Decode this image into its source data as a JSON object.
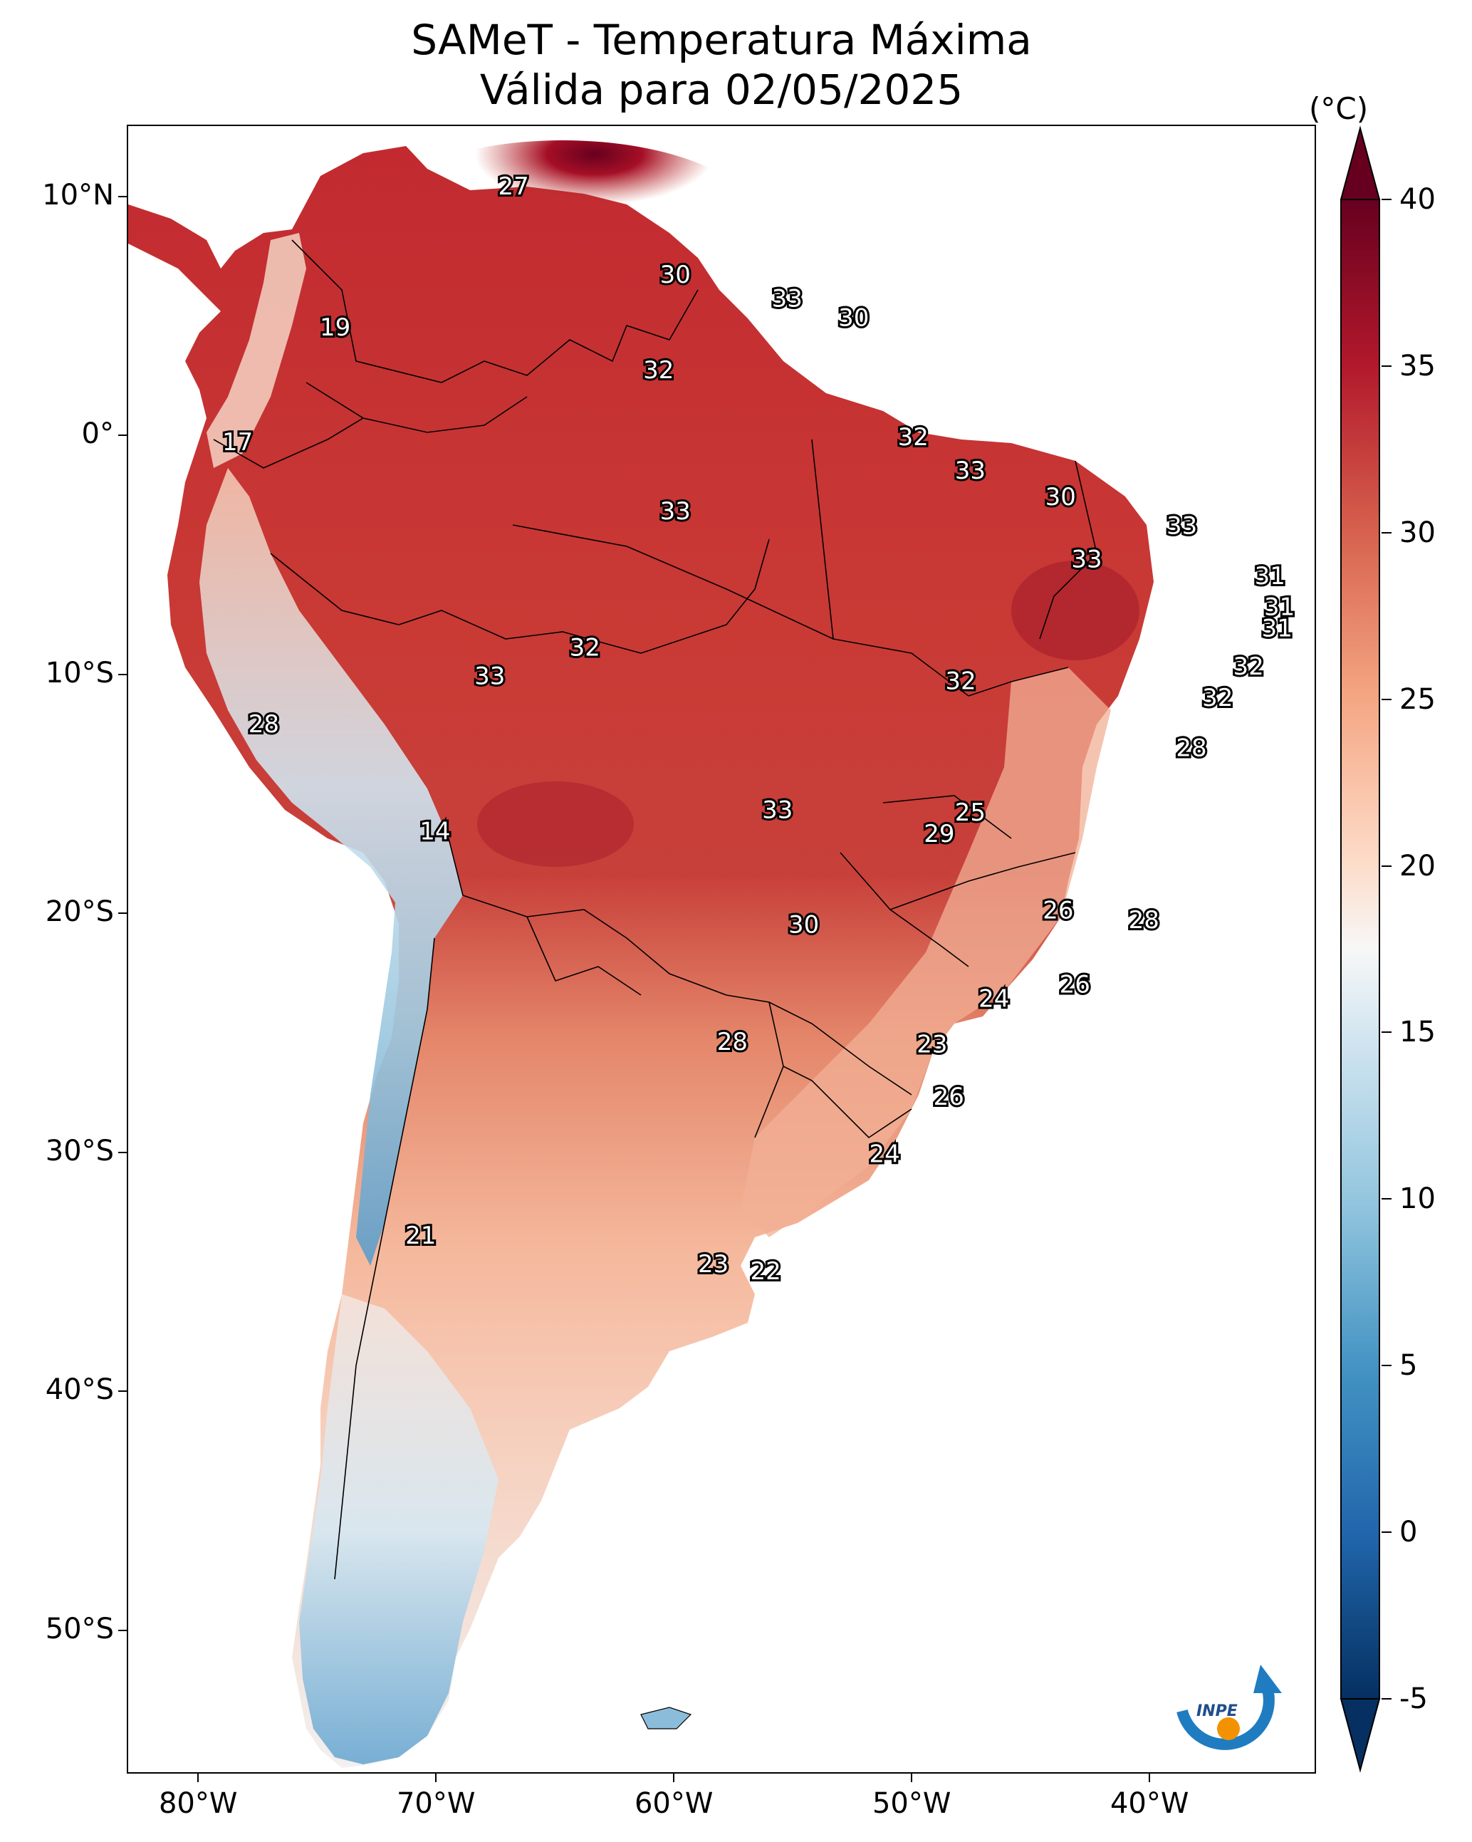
{
  "title": {
    "line1": "SAMeT - Temperatura Máxima",
    "line2": "Válida para 02/05/2025"
  },
  "axes": {
    "lat_labels": [
      "10°N",
      "0°",
      "10°S",
      "20°S",
      "30°S",
      "40°S",
      "50°S"
    ],
    "lat_values": [
      10,
      0,
      -10,
      -20,
      -30,
      -40,
      -50
    ],
    "lon_labels": [
      "80°W",
      "70°W",
      "60°W",
      "50°W",
      "40°W"
    ],
    "lon_values": [
      -80,
      -70,
      -60,
      -50,
      -40
    ],
    "lon_range": [
      -83,
      -33
    ],
    "lat_range": [
      13,
      -56
    ]
  },
  "colorbar": {
    "unit": "(°C)",
    "tick_labels": [
      "40",
      "35",
      "30",
      "25",
      "20",
      "15",
      "10",
      "5",
      "0",
      "-5"
    ],
    "tick_values": [
      40,
      35,
      30,
      25,
      20,
      15,
      10,
      5,
      0,
      -5
    ],
    "range": [
      -5,
      40
    ],
    "colors": [
      "#053061",
      "#2166ac",
      "#4393c3",
      "#92c5de",
      "#d1e5f0",
      "#f7f7f7",
      "#fddbc7",
      "#f4a582",
      "#d6604d",
      "#b2182b",
      "#67001f"
    ]
  },
  "temperature_labels": [
    {
      "value": "27",
      "lon": -66.8,
      "lat": 10.5
    },
    {
      "value": "19",
      "lon": -74.3,
      "lat": 4.6
    },
    {
      "value": "17",
      "lon": -78.4,
      "lat": -0.2
    },
    {
      "value": "30",
      "lon": -60.0,
      "lat": 6.8
    },
    {
      "value": "33",
      "lon": -55.3,
      "lat": 5.8
    },
    {
      "value": "30",
      "lon": -52.5,
      "lat": 5.0
    },
    {
      "value": "32",
      "lon": -60.7,
      "lat": 2.8
    },
    {
      "value": "32",
      "lon": -50.0,
      "lat": 0.0
    },
    {
      "value": "33",
      "lon": -47.6,
      "lat": -1.4
    },
    {
      "value": "30",
      "lon": -43.8,
      "lat": -2.5
    },
    {
      "value": "33",
      "lon": -60.0,
      "lat": -3.1
    },
    {
      "value": "33",
      "lon": -38.7,
      "lat": -3.7
    },
    {
      "value": "33",
      "lon": -42.7,
      "lat": -5.1
    },
    {
      "value": "31",
      "lon": -35.0,
      "lat": -5.8
    },
    {
      "value": "31",
      "lon": -34.6,
      "lat": -7.1
    },
    {
      "value": "31",
      "lon": -34.7,
      "lat": -8.0
    },
    {
      "value": "32",
      "lon": -63.8,
      "lat": -8.8
    },
    {
      "value": "33",
      "lon": -67.8,
      "lat": -10.0
    },
    {
      "value": "32",
      "lon": -48.0,
      "lat": -10.2
    },
    {
      "value": "32",
      "lon": -35.9,
      "lat": -9.6
    },
    {
      "value": "32",
      "lon": -37.2,
      "lat": -10.9
    },
    {
      "value": "28",
      "lon": -77.3,
      "lat": -12.0
    },
    {
      "value": "28",
      "lon": -38.3,
      "lat": -13.0
    },
    {
      "value": "14",
      "lon": -70.1,
      "lat": -16.5
    },
    {
      "value": "33",
      "lon": -55.7,
      "lat": -15.6
    },
    {
      "value": "25",
      "lon": -47.6,
      "lat": -15.7
    },
    {
      "value": "29",
      "lon": -48.9,
      "lat": -16.6
    },
    {
      "value": "26",
      "lon": -43.9,
      "lat": -19.8
    },
    {
      "value": "28",
      "lon": -40.3,
      "lat": -20.2
    },
    {
      "value": "30",
      "lon": -54.6,
      "lat": -20.4
    },
    {
      "value": "26",
      "lon": -43.2,
      "lat": -22.9
    },
    {
      "value": "24",
      "lon": -46.6,
      "lat": -23.5
    },
    {
      "value": "23",
      "lon": -49.2,
      "lat": -25.4
    },
    {
      "value": "28",
      "lon": -57.6,
      "lat": -25.3
    },
    {
      "value": "26",
      "lon": -48.5,
      "lat": -27.6
    },
    {
      "value": "24",
      "lon": -51.2,
      "lat": -30.0
    },
    {
      "value": "21",
      "lon": -70.7,
      "lat": -33.4
    },
    {
      "value": "23",
      "lon": -58.4,
      "lat": -34.6
    },
    {
      "value": "22",
      "lon": -56.2,
      "lat": -34.9
    }
  ],
  "logo": {
    "text": "INPE"
  }
}
